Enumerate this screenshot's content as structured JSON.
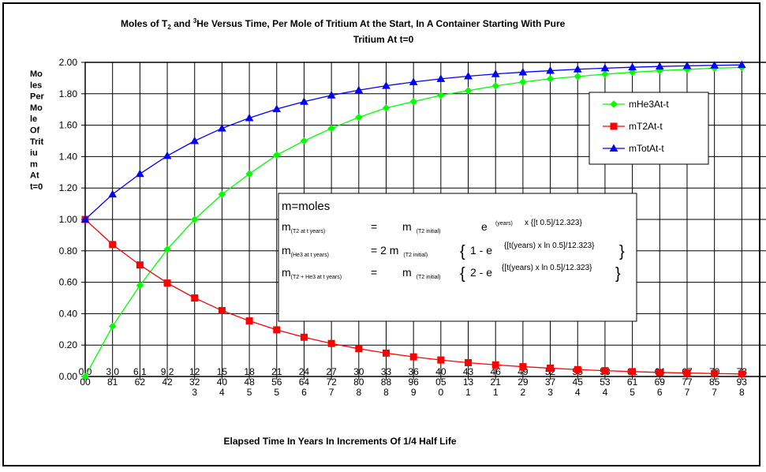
{
  "chart_data": {
    "type": "line",
    "title_line1_a": "Moles of T",
    "title_line1_sub": "2",
    "title_line1_b": " and ",
    "title_line1_sup": "3",
    "title_line1_c": "He Versus Time, Per Mole of Tritium At the Start, In A Container Starting With Pure",
    "title_line2": "Tritium At t=0",
    "ylabel_lines": [
      "Mo",
      "les",
      "Per",
      "Mo",
      "le",
      "Of",
      "Trit",
      "iu",
      "m",
      "At",
      "t=0"
    ],
    "xlabel": "Elapsed Time In Years In Increments Of 1/4 Half Life",
    "ylim": [
      0,
      2
    ],
    "y_ticks": [
      "0.00",
      "0.20",
      "0.40",
      "0.60",
      "0.80",
      "1.00",
      "1.20",
      "1.40",
      "1.60",
      "1.80",
      "2.00"
    ],
    "x_tick_labels": [
      [
        "0.0",
        "00"
      ],
      [
        "3.0",
        "81"
      ],
      [
        "6.1",
        "62"
      ],
      [
        "9.2",
        "42"
      ],
      [
        "12",
        "32",
        "3"
      ],
      [
        "15",
        "40",
        "4"
      ],
      [
        "18",
        "48",
        "5"
      ],
      [
        "21",
        "56",
        "5"
      ],
      [
        "24",
        "64",
        "6"
      ],
      [
        "27",
        "72",
        "7"
      ],
      [
        "30",
        "80",
        "8"
      ],
      [
        "33",
        "88",
        "8"
      ],
      [
        "36",
        "96",
        "9"
      ],
      [
        "40",
        "05",
        "0"
      ],
      [
        "43",
        "13",
        "1"
      ],
      [
        "46",
        "21",
        "1"
      ],
      [
        "49",
        "29",
        "2"
      ],
      [
        "52",
        "37",
        "3"
      ],
      [
        "55",
        "45",
        "4"
      ],
      [
        "58",
        "53",
        "4"
      ],
      [
        "61",
        "61",
        "5"
      ],
      [
        "64",
        "69",
        "6"
      ],
      [
        "67",
        "77",
        "7"
      ],
      [
        "70",
        "85",
        "7"
      ],
      [
        "73",
        "93",
        "8"
      ]
    ],
    "grid": true,
    "legend_position": "upper-right",
    "series": [
      {
        "name": "mHe3At-t",
        "color": "#00ff00",
        "marker": "diamond",
        "values": [
          0.0,
          0.32,
          0.58,
          0.81,
          1.0,
          1.16,
          1.29,
          1.41,
          1.5,
          1.58,
          1.65,
          1.71,
          1.75,
          1.79,
          1.82,
          1.85,
          1.875,
          1.895,
          1.91,
          1.925,
          1.937,
          1.947,
          1.955,
          1.963,
          1.968
        ]
      },
      {
        "name": "mT2At-t",
        "color": "#ff0000",
        "marker": "square",
        "values": [
          1.0,
          0.84,
          0.71,
          0.595,
          0.5,
          0.42,
          0.354,
          0.297,
          0.25,
          0.21,
          0.177,
          0.149,
          0.125,
          0.105,
          0.088,
          0.074,
          0.0625,
          0.053,
          0.044,
          0.037,
          0.031,
          0.026,
          0.022,
          0.019,
          0.016
        ]
      },
      {
        "name": "mTotAt-t",
        "color": "#0000ff",
        "marker": "triangle",
        "values": [
          1.0,
          1.16,
          1.29,
          1.405,
          1.5,
          1.58,
          1.646,
          1.703,
          1.75,
          1.79,
          1.823,
          1.851,
          1.875,
          1.895,
          1.912,
          1.926,
          1.9375,
          1.947,
          1.956,
          1.963,
          1.969,
          1.974,
          1.978,
          1.981,
          1.984
        ]
      }
    ],
    "equations": {
      "line0": "m=moles",
      "r1_lhs": "m",
      "r1_lhs_sub": "(T2 at t years)",
      "r1_eq": "=",
      "r1_m": "m",
      "r1_m_sub": "(T2 initial)",
      "r1_e": "e",
      "r1_sup_a": "(years)",
      "r1_sup_b": "x {[t 0.5]/12.323}",
      "r2_lhs": "m",
      "r2_lhs_sub": "(He3 at t years)",
      "r2_eq": "= 2 m",
      "r2_m_sub": "(T2 initial)",
      "r2_brace_l": "{",
      "r2_body": "1 -  e",
      "r2_sup": "{[t(years)   x ln 0.5]/12.323}",
      "r2_brace_r": "}",
      "r3_lhs": "m",
      "r3_lhs_sub": "(T2 + He3 at t years)",
      "r3_eq": "=",
      "r3_m": "m",
      "r3_m_sub": "(T2 initial)",
      "r3_brace_l": "{",
      "r3_body": "2 - e",
      "r3_sup": "{[t(years)   x ln 0.5]/12.323}",
      "r3_brace_r": "}"
    }
  }
}
